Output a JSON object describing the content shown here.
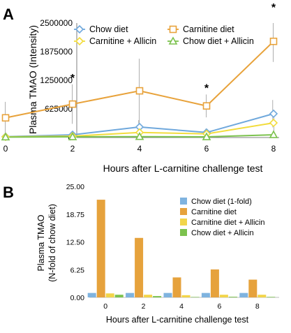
{
  "chart_data": [
    {
      "panel": "A",
      "type": "line",
      "xlabel": "Hours after L-carnitine challenge test",
      "ylabel": "Plasma TMAO (Intensity)",
      "x": [
        0,
        2,
        4,
        6,
        8
      ],
      "xticks": [
        "0",
        "2",
        "4",
        "6",
        "8"
      ],
      "ylim": [
        0,
        2500000
      ],
      "yticks": [
        "0",
        "625000",
        "1250000",
        "1875000",
        "2500000"
      ],
      "legend_position": "top",
      "series": [
        {
          "name": "Chow diet",
          "color": "#6fa8dc",
          "marker": "diamond",
          "values": [
            20000,
            60000,
            230000,
            110000,
            520000
          ],
          "error": [
            15000,
            40000,
            150000,
            80000,
            300000
          ]
        },
        {
          "name": "Carnitine diet",
          "color": "#e8a23a",
          "marker": "square",
          "values": [
            430000,
            730000,
            1020000,
            690000,
            2100000
          ],
          "error": [
            350000,
            430000,
            700000,
            250000,
            450000
          ]
        },
        {
          "name": "Carnitine + Allicin",
          "color": "#f2dc3c",
          "marker": "diamond",
          "values": [
            15000,
            30000,
            110000,
            80000,
            320000
          ],
          "error": [
            10000,
            20000,
            80000,
            50000,
            200000
          ]
        },
        {
          "name": "Chow diet + Allicin",
          "color": "#7cc24e",
          "marker": "triangle",
          "values": [
            10000,
            15000,
            20000,
            15000,
            60000
          ],
          "error": [
            5000,
            10000,
            10000,
            10000,
            30000
          ]
        }
      ],
      "annotations": [
        {
          "text": "*",
          "x": 2
        },
        {
          "text": "*",
          "x": 6
        },
        {
          "text": "*",
          "x": 8
        }
      ]
    },
    {
      "panel": "B",
      "type": "bar",
      "xlabel": "Hours after L-carnitine challenge test",
      "ylabel_lines": [
        "Plasma TMAO",
        "(N-fold of chow diet)"
      ],
      "categories": [
        "0",
        "2",
        "4",
        "6",
        "8"
      ],
      "ylim": [
        0,
        25
      ],
      "yticks": [
        "0.00",
        "6.25",
        "12.50",
        "18.75",
        "25.00"
      ],
      "legend_position": "top-right",
      "series": [
        {
          "name": "Chow diet (1-fold)",
          "color": "#7fb3df",
          "values": [
            1,
            1,
            1,
            1,
            1
          ]
        },
        {
          "name": "Carnitine diet",
          "color": "#e6a23c",
          "values": [
            22,
            13.4,
            4.5,
            6.3,
            4.0
          ]
        },
        {
          "name": "Carnitine diet + Allicin",
          "color": "#f2d54a",
          "values": [
            0.9,
            0.6,
            0.5,
            0.6,
            0.6
          ]
        },
        {
          "name": "Chow diet + Allicin",
          "color": "#7cc24e",
          "values": [
            0.6,
            0.3,
            0.1,
            0.15,
            0.12
          ]
        }
      ]
    }
  ]
}
